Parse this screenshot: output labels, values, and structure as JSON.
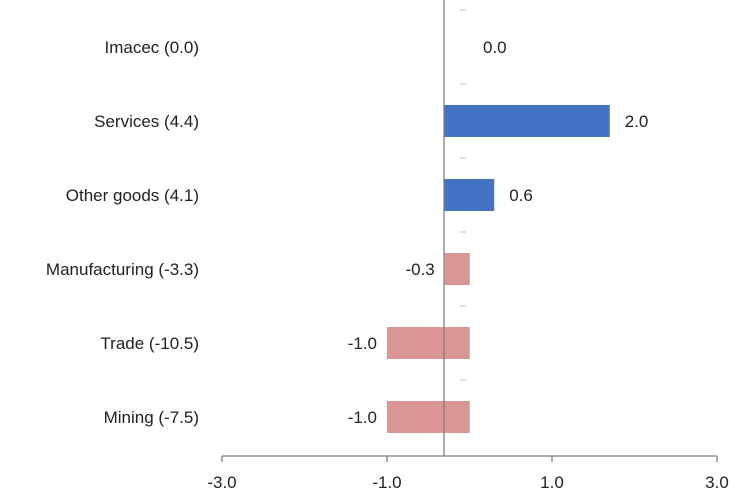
{
  "chart_data": {
    "type": "bar",
    "orientation": "horizontal",
    "title": "",
    "xlabel": "",
    "ylabel": "",
    "categories": [
      "Imacec (0.0)",
      "Services (4.4)",
      "Other goods (4.1)",
      "Manufacturing (-3.3)",
      "Trade (-10.5)",
      "Mining (-7.5)"
    ],
    "values": [
      0.0,
      2.0,
      0.6,
      -0.3,
      -1.0,
      -1.0
    ],
    "value_labels": [
      "0.0",
      "2.0",
      "0.6",
      "-0.3",
      "-1.0",
      "-1.0"
    ],
    "xlim": [
      -3.0,
      3.0
    ],
    "xticks": [
      -3.0,
      -1.0,
      1.0,
      3.0
    ],
    "xtick_labels": [
      "-3.0",
      "-1.0",
      "1.0",
      "3.0"
    ],
    "bar_start": -0.3,
    "grid": false,
    "legend": "none",
    "colors": {
      "positive": "#4472C4",
      "negative": "#DA9694",
      "axis": "#7f7f7f"
    }
  }
}
